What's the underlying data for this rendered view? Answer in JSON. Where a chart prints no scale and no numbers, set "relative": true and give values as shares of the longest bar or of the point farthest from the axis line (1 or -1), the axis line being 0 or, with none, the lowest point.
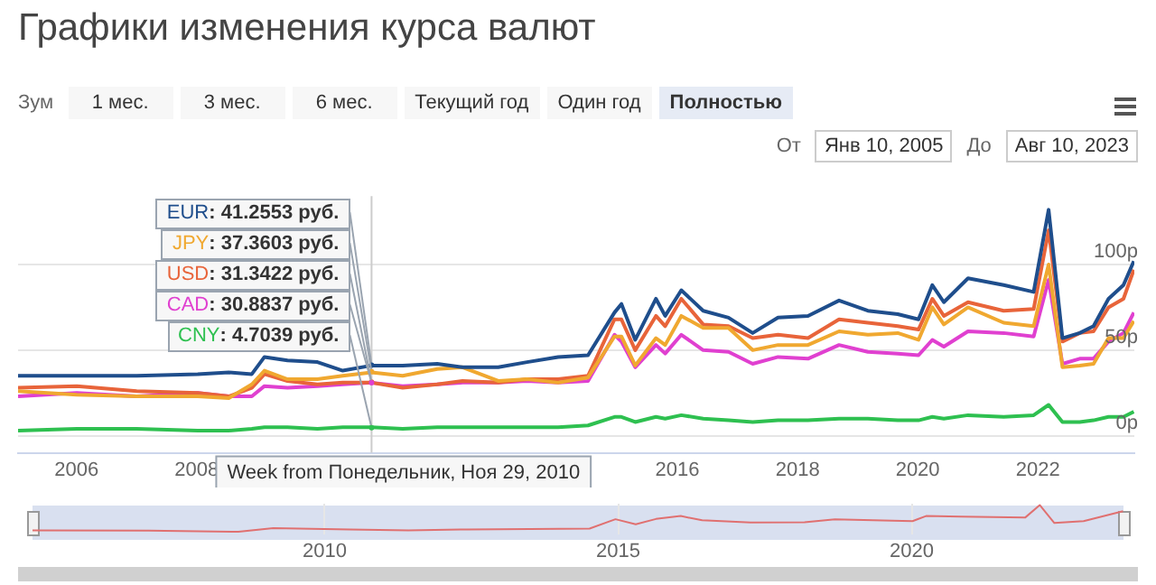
{
  "chart_data": [
    {
      "type": "line",
      "title": "Графики изменения курса валют",
      "x": [
        "2005-01-10",
        "2006-01-02",
        "2007-01-01",
        "2008-01-07",
        "2008-07-14",
        "2008-12-01",
        "2009-02-16",
        "2009-07-06",
        "2010-01-04",
        "2010-06-07",
        "2010-11-29",
        "2011-06-06",
        "2012-01-02",
        "2012-06-04",
        "2013-01-07",
        "2013-07-01",
        "2014-01-06",
        "2014-07-07",
        "2014-12-15",
        "2015-01-26",
        "2015-04-20",
        "2015-08-24",
        "2015-10-19",
        "2016-01-25",
        "2016-06-06",
        "2016-11-07",
        "2017-04-03",
        "2017-09-04",
        "2018-03-05",
        "2018-09-10",
        "2019-03-04",
        "2019-09-02",
        "2020-01-06",
        "2020-03-30",
        "2020-06-08",
        "2020-11-02",
        "2021-06-07",
        "2021-12-06",
        "2022-03-07",
        "2022-05-30",
        "2022-09-12",
        "2022-12-05",
        "2023-03-06",
        "2023-06-05",
        "2023-08-07"
      ],
      "series": [
        {
          "name": "EUR",
          "color": "#1f4e8c",
          "values": [
            35,
            35,
            35,
            36,
            37,
            36,
            46,
            44,
            43,
            38,
            41,
            41,
            42,
            40,
            40,
            43,
            46,
            47,
            72,
            77,
            56,
            80,
            70,
            85,
            73,
            69,
            60,
            69,
            70,
            79,
            73,
            71,
            68,
            88,
            78,
            92,
            88,
            84,
            132,
            57,
            60,
            64,
            80,
            88,
            102
          ]
        },
        {
          "name": "JPY",
          "color": "#f0a830",
          "values": [
            26,
            24,
            23,
            23,
            22,
            30,
            38,
            33,
            33,
            35,
            37,
            35,
            39,
            40,
            32,
            33,
            31,
            34,
            58,
            58,
            41,
            57,
            53,
            70,
            63,
            63,
            50,
            53,
            53,
            61,
            59,
            60,
            56,
            75,
            65,
            75,
            66,
            64,
            100,
            40,
            41,
            42,
            57,
            57,
            67
          ]
        },
        {
          "name": "USD",
          "color": "#e8643a",
          "values": [
            28,
            29,
            26,
            25,
            23,
            28,
            36,
            32,
            30,
            31,
            31,
            28,
            30,
            32,
            31,
            33,
            33,
            35,
            68,
            68,
            50,
            70,
            64,
            80,
            65,
            64,
            57,
            59,
            57,
            68,
            66,
            64,
            62,
            80,
            70,
            78,
            73,
            74,
            120,
            55,
            60,
            61,
            75,
            80,
            97
          ]
        },
        {
          "name": "CAD",
          "color": "#e040d0",
          "values": [
            23,
            25,
            23,
            25,
            23,
            23,
            29,
            28,
            29,
            30,
            31,
            29,
            30,
            31,
            31,
            32,
            31,
            32,
            59,
            55,
            40,
            53,
            48,
            59,
            50,
            49,
            42,
            46,
            45,
            53,
            49,
            48,
            47,
            56,
            52,
            61,
            60,
            58,
            91,
            42,
            45,
            45,
            55,
            60,
            72
          ]
        },
        {
          "name": "CNY",
          "color": "#2ec050",
          "values": [
            3,
            4,
            4,
            3,
            3,
            4,
            5,
            5,
            4,
            5,
            5,
            4,
            5,
            5,
            5,
            5,
            5,
            6,
            11,
            11,
            8,
            11,
            10,
            12,
            10,
            9,
            8,
            9,
            9,
            10,
            10,
            9,
            9,
            11,
            10,
            12,
            11,
            12,
            18,
            8,
            8,
            9,
            11,
            11,
            14
          ]
        }
      ],
      "xlim": [
        "2005-01-10",
        "2023-08-10"
      ],
      "xticks": [
        "2006",
        "2008",
        "2014",
        "2016",
        "2018",
        "2020",
        "2022"
      ],
      "ylim": [
        -10,
        140
      ],
      "yticks": [
        {
          "value": 0,
          "label": "0р"
        },
        {
          "value": 50,
          "label": "50р"
        },
        {
          "value": 100,
          "label": "100р"
        }
      ],
      "ref_lines": [
        {
          "axis": "x",
          "value": "2010-11-29",
          "color": "#cccccc"
        }
      ],
      "grid": "y",
      "legend": false,
      "marker": "none",
      "line_style": "solid",
      "annotations": [
        {
          "text": ": 41.2553 руб.",
          "x": "2010-11-29",
          "y": 41.2553
        },
        {
          "text": ": 37.3603 руб.",
          "x": "2010-11-29",
          "y": 37.3603
        },
        {
          "text": ": 31.3422 руб.",
          "x": "2010-11-29",
          "y": 31.3422
        },
        {
          "text": ": 30.8837 руб.",
          "x": "2010-11-29",
          "y": 30.8837
        },
        {
          "text": ": 4.7039 руб.",
          "x": "2010-11-29",
          "y": 4.7039
        },
        "Week from Понедельник, Ноя 29, 2010",
        "Зум",
        "1 мес.",
        "3 мес.",
        "6 мес.",
        "Текущий год",
        "Один год",
        "Полностью",
        "От",
        "Янв 10, 2005",
        "До",
        "Авг 10, 2023"
      ]
    },
    {
      "type": "line",
      "color": "#e07070",
      "relative": true,
      "tick_labels": "x",
      "grid": "x",
      "x": [
        "2005-01-10",
        "2007-01-01",
        "2008-07-14",
        "2009-02-16",
        "2010-06-07",
        "2011-06-06",
        "2012-06-04",
        "2013-07-01",
        "2014-07-07",
        "2014-12-15",
        "2015-04-20",
        "2015-08-24",
        "2016-01-25",
        "2016-06-06",
        "2017-04-03",
        "2018-03-05",
        "2018-09-10",
        "2019-09-02",
        "2020-01-06",
        "2020-03-30",
        "2020-11-02",
        "2021-12-06",
        "2022-03-07",
        "2022-06-06",
        "2022-12-05",
        "2023-08-07"
      ],
      "values": [
        0.05,
        0.04,
        0,
        0.14,
        0.09,
        0.05,
        0.09,
        0.1,
        0.12,
        0.47,
        0.28,
        0.48,
        0.59,
        0.43,
        0.35,
        0.36,
        0.47,
        0.42,
        0.4,
        0.59,
        0.57,
        0.53,
        1,
        0.33,
        0.4,
        0.77
      ],
      "xlim": [
        "2005-01-10",
        "2023-08-10"
      ],
      "xticks": [
        "2010",
        "2015",
        "2020"
      ]
    }
  ]
}
